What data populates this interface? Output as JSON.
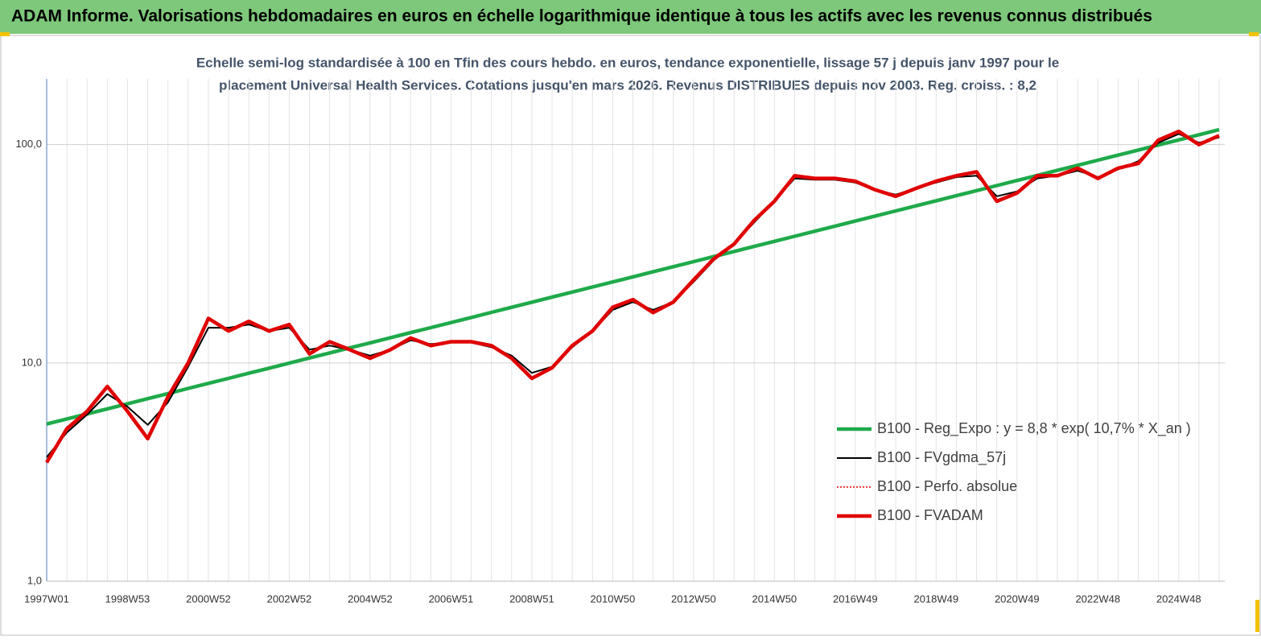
{
  "header": "ADAM Informe. Valorisations hebdomadaires en euros en échelle logarithmique identique à tous les actifs avec les revenus connus distribués",
  "chart_data": {
    "type": "line",
    "subtitle": [
      "Echelle semi-log standardisée à 100 en Tfin des cours hebdo. en euros, tendance exponentielle, lissage 57 j depuis janv 1997 pour le",
      "placement Universal Health Services.  Cotations jusqu'en mars 2026. Revenus DISTRIBUES depuis nov 2003. Reg. croiss. : 8,2"
    ],
    "categories": [
      "1997W01",
      null,
      null,
      null,
      "1998W53",
      null,
      null,
      null,
      "2000W52",
      null,
      null,
      null,
      "2002W52",
      null,
      null,
      null,
      "2004W52",
      null,
      null,
      null,
      "2006W51",
      null,
      null,
      null,
      "2008W51",
      null,
      null,
      null,
      "2010W50",
      null,
      null,
      null,
      "2012W50",
      null,
      null,
      null,
      "2014W50",
      null,
      null,
      null,
      "2016W49",
      null,
      null,
      null,
      "2018W49",
      null,
      null,
      null,
      "2020W49",
      null,
      null,
      null,
      "2022W48",
      null,
      null,
      null,
      "2024W48",
      null,
      null
    ],
    "log_scale": true,
    "grid": true,
    "ylim": [
      1,
      200
    ],
    "yticks": [
      {
        "value": 1,
        "label": "1,0"
      },
      {
        "value": 10,
        "label": "10,0"
      },
      {
        "value": 100,
        "label": "100,0"
      }
    ],
    "series": [
      {
        "name": "B100 - Reg_Expo : y = 8,8 * exp( 10,7% *  X_an )",
        "color": "#1faa4a",
        "style": "thick",
        "values": [
          5.25,
          5.54,
          5.84,
          6.16,
          6.5,
          6.86,
          7.24,
          7.64,
          8.06,
          8.5,
          8.97,
          9.46,
          9.98,
          10.53,
          11.11,
          11.72,
          12.36,
          13.04,
          13.76,
          14.51,
          15.31,
          16.15,
          17.04,
          17.98,
          18.97,
          20.01,
          21.11,
          22.27,
          23.49,
          24.79,
          26.15,
          27.58,
          29.1,
          30.7,
          32.39,
          34.17,
          36.05,
          38.03,
          40.12,
          42.32,
          44.65,
          47.1,
          49.69,
          52.42,
          55.3,
          58.34,
          61.55,
          64.93,
          68.5,
          72.27,
          76.24,
          80.43,
          84.85,
          89.51,
          94.43,
          99.62,
          105.1,
          110.9,
          117
        ]
      },
      {
        "name": "B100 - FVgdma_57j",
        "color": "#000000",
        "style": "thin",
        "values": [
          3.7,
          4.8,
          5.8,
          7.2,
          6.3,
          5.2,
          6.6,
          9.6,
          14.5,
          14.5,
          15,
          14,
          14.5,
          11.5,
          12,
          11.5,
          10.8,
          11.5,
          12.7,
          12.2,
          12.4,
          12.4,
          11.8,
          10.8,
          9,
          9.6,
          11.8,
          14,
          17.5,
          19,
          17.5,
          19,
          23.5,
          29.5,
          35,
          44,
          55,
          70,
          69,
          69,
          67,
          62,
          59,
          63,
          67,
          71,
          72,
          58,
          61,
          70,
          72,
          76,
          71,
          77,
          84,
          102,
          112,
          102,
          108
        ]
      },
      {
        "name": "B100 - Perfo. absolue",
        "color": "#e00000",
        "style": "dotted",
        "values": [
          3.5,
          5,
          6,
          7.8,
          6,
          4.5,
          7,
          10,
          16,
          14,
          15.5,
          14,
          15,
          11,
          12.5,
          11.5,
          10.5,
          11.5,
          13,
          12,
          12.5,
          12.5,
          12,
          10.5,
          8.5,
          9.5,
          12,
          14,
          18,
          19.5,
          17,
          19,
          24,
          30,
          35,
          45,
          55,
          72,
          70,
          70,
          68,
          62,
          58,
          63,
          68,
          72,
          75,
          55,
          60,
          72,
          72,
          78,
          70,
          78,
          82,
          105,
          115,
          100,
          110
        ]
      },
      {
        "name": "B100 - FVADAM",
        "color": "#e00000",
        "style": "thick",
        "values": [
          3.5,
          5,
          6,
          7.8,
          6,
          4.5,
          7,
          10,
          16,
          14,
          15.5,
          14,
          15,
          11,
          12.5,
          11.5,
          10.5,
          11.5,
          13,
          12,
          12.5,
          12.5,
          12,
          10.5,
          8.5,
          9.5,
          12,
          14,
          18,
          19.5,
          17,
          19,
          24,
          30,
          35,
          45,
          55,
          72,
          70,
          70,
          68,
          62,
          58,
          63,
          68,
          72,
          75,
          55,
          60,
          72,
          72,
          78,
          70,
          78,
          82,
          105,
          115,
          100,
          110
        ]
      }
    ]
  }
}
